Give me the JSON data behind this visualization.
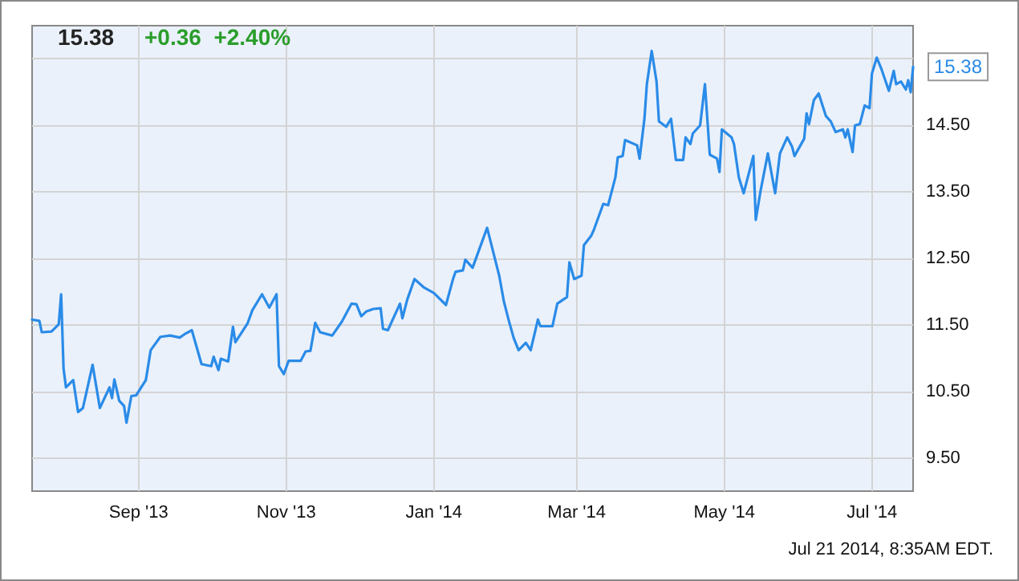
{
  "chart_data": {
    "type": "line",
    "title": "15.38",
    "subtitle": "+0.36  +2.40%",
    "annotations": [
      {
        "text": "15.38",
        "x": "2014-07-18",
        "y": 15.38
      },
      "Jul 21 2014, 8:35AM EDT."
    ],
    "x": [
      "2013-07-19",
      "2013-07-22",
      "2013-07-23",
      "2013-07-27",
      "2013-07-30",
      "2013-07-31",
      "2013-08-01",
      "2013-08-02",
      "2013-08-05",
      "2013-08-07",
      "2013-08-09",
      "2013-08-13",
      "2013-08-16",
      "2013-08-20",
      "2013-08-21",
      "2013-08-22",
      "2013-08-24",
      "2013-08-26",
      "2013-08-27",
      "2013-08-29",
      "2013-08-31",
      "2013-09-04",
      "2013-09-06",
      "2013-09-10",
      "2013-09-14",
      "2013-09-18",
      "2013-09-20",
      "2013-09-23",
      "2013-09-27",
      "2013-10-01",
      "2013-10-02",
      "2013-10-04",
      "2013-10-05",
      "2013-10-08",
      "2013-10-10",
      "2013-10-11",
      "2013-10-16",
      "2013-10-18",
      "2013-10-22",
      "2013-10-25",
      "2013-10-28",
      "2013-10-29",
      "2013-10-31",
      "2013-11-02",
      "2013-11-07",
      "2013-11-09",
      "2013-11-11",
      "2013-11-13",
      "2013-11-15",
      "2013-11-20",
      "2013-11-24",
      "2013-11-28",
      "2013-11-30",
      "2013-12-02",
      "2013-12-04",
      "2013-12-07",
      "2013-12-10",
      "2013-12-11",
      "2013-12-13",
      "2013-12-18",
      "2013-12-19",
      "2013-12-21",
      "2013-12-24",
      "2013-12-28",
      "2014-01-01",
      "2014-01-06",
      "2014-01-09",
      "2014-01-10",
      "2014-01-13",
      "2014-01-14",
      "2014-01-17",
      "2014-01-23",
      "2014-01-28",
      "2014-01-30",
      "2014-02-01",
      "2014-02-03",
      "2014-02-05",
      "2014-02-08",
      "2014-02-10",
      "2014-02-13",
      "2014-02-14",
      "2014-02-19",
      "2014-02-21",
      "2014-02-25",
      "2014-02-26",
      "2014-02-28",
      "2014-03-03",
      "2014-03-04",
      "2014-03-07",
      "2014-03-08",
      "2014-03-12",
      "2014-03-14",
      "2014-03-17",
      "2014-03-18",
      "2014-03-20",
      "2014-03-21",
      "2014-03-26",
      "2014-03-27",
      "2014-03-29",
      "2014-03-30",
      "2014-04-01",
      "2014-04-03",
      "2014-04-04",
      "2014-04-07",
      "2014-04-09",
      "2014-04-11",
      "2014-04-14",
      "2014-04-15",
      "2014-04-17",
      "2014-04-18",
      "2014-04-21",
      "2014-04-23",
      "2014-04-25",
      "2014-04-28",
      "2014-04-29",
      "2014-04-30",
      "2014-05-04",
      "2014-05-05",
      "2014-05-07",
      "2014-05-09",
      "2014-05-13",
      "2014-05-14",
      "2014-05-16",
      "2014-05-19",
      "2014-05-22",
      "2014-05-24",
      "2014-05-27",
      "2014-05-29",
      "2014-05-30",
      "2014-06-03",
      "2014-06-04",
      "2014-06-05",
      "2014-06-07",
      "2014-06-09",
      "2014-06-12",
      "2014-06-14",
      "2014-06-16",
      "2014-06-19",
      "2014-06-20",
      "2014-06-21",
      "2014-06-23",
      "2014-06-24",
      "2014-06-26",
      "2014-06-28",
      "2014-06-30",
      "2014-07-01",
      "2014-07-03",
      "2014-07-05",
      "2014-07-08",
      "2014-07-10",
      "2014-07-11",
      "2014-07-13",
      "2014-07-15",
      "2014-07-16",
      "2014-07-17",
      "2014-07-18"
    ],
    "series": [
      {
        "color": "#2a8be8",
        "values": [
          11.58,
          11.56,
          11.39,
          11.4,
          11.51,
          11.96,
          10.84,
          10.56,
          10.67,
          10.19,
          10.25,
          10.9,
          10.25,
          10.56,
          10.4,
          10.68,
          10.36,
          10.28,
          10.03,
          10.43,
          10.44,
          10.67,
          11.12,
          11.32,
          11.34,
          11.31,
          11.36,
          11.42,
          10.91,
          10.88,
          11.02,
          10.82,
          10.99,
          10.95,
          11.47,
          11.24,
          11.52,
          11.72,
          11.96,
          11.76,
          11.96,
          10.88,
          10.76,
          10.96,
          10.96,
          11.1,
          11.11,
          11.53,
          11.39,
          11.34,
          11.55,
          11.82,
          11.81,
          11.63,
          11.7,
          11.74,
          11.75,
          11.44,
          11.42,
          11.82,
          11.6,
          11.88,
          12.19,
          12.06,
          11.98,
          11.8,
          12.2,
          12.3,
          12.32,
          12.48,
          12.36,
          12.96,
          12.24,
          11.84,
          11.56,
          11.3,
          11.12,
          11.23,
          11.12,
          11.58,
          11.48,
          11.48,
          11.82,
          11.92,
          12.44,
          12.19,
          12.24,
          12.7,
          12.84,
          12.92,
          13.32,
          13.3,
          13.72,
          14.02,
          14.04,
          14.28,
          14.2,
          14.0,
          14.6,
          15.12,
          15.62,
          15.16,
          14.56,
          14.48,
          14.6,
          13.98,
          13.98,
          14.32,
          14.22,
          14.38,
          14.5,
          15.12,
          14.06,
          14.0,
          13.8,
          14.44,
          14.32,
          14.22,
          13.72,
          13.48,
          14.04,
          13.08,
          13.52,
          14.08,
          13.48,
          14.08,
          14.32,
          14.18,
          14.04,
          14.3,
          14.68,
          14.52,
          14.88,
          14.98,
          14.64,
          14.56,
          14.4,
          14.44,
          14.32,
          14.44,
          14.1,
          14.5,
          14.52,
          14.8,
          14.76,
          15.28,
          15.52,
          15.34,
          15.02,
          15.32,
          15.12,
          15.16,
          15.04,
          15.18,
          15.0,
          15.38
        ]
      }
    ],
    "xlim": [
      "2013-07-19",
      "2014-07-18"
    ],
    "xticks": [
      {
        "value": "2013-09-01",
        "label": "Sep '13"
      },
      {
        "value": "2013-11-01",
        "label": "Nov '13"
      },
      {
        "value": "2014-01-01",
        "label": "Jan '14"
      },
      {
        "value": "2014-03-01",
        "label": "Mar '14"
      },
      {
        "value": "2014-05-01",
        "label": "May '14"
      },
      {
        "value": "2014-07-01",
        "label": "Jul '14"
      }
    ],
    "ylim": [
      9,
      16
    ],
    "yticks": [
      {
        "value": 9.5,
        "label": "9.50"
      },
      {
        "value": 10.5,
        "label": "10.50"
      },
      {
        "value": 11.5,
        "label": "11.50"
      },
      {
        "value": 12.5,
        "label": "12.50"
      },
      {
        "value": 13.5,
        "label": "13.50"
      },
      {
        "value": 14.5,
        "label": "14.50"
      },
      {
        "value": 15.5,
        "label": null
      }
    ],
    "grid": true,
    "marker": "none",
    "line_style": "solid"
  }
}
